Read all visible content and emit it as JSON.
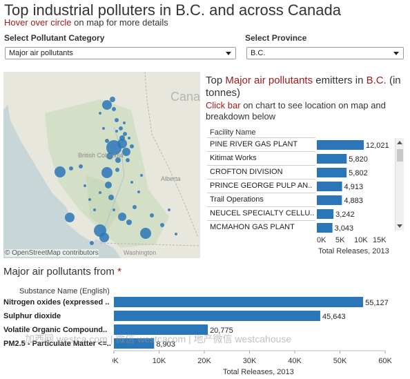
{
  "header": {
    "title": "Top industrial polluters in B.C. and across Canada",
    "subtitle_hl": "Hover over circle",
    "subtitle_rest": " on map for more details"
  },
  "filters": {
    "pollutant_label": "Select Pollutant Category",
    "pollutant_value": "Major air pollutants",
    "province_label": "Select Province",
    "province_value": "B.C."
  },
  "map": {
    "credit": "© OpenStreetMap contributors",
    "labels": [
      "Cana",
      "British Columbia",
      "Alberta",
      "Washington"
    ],
    "marker_color": "#2a76b8"
  },
  "facility_chart": {
    "head_prefix": "Top ",
    "head_hl": "Major air pollutants",
    "head_mid": " emitters in ",
    "head_province": "B.C.",
    "head_suffix": " (in tonnes)",
    "sub_hl": "Click bar",
    "sub_rest": " on chart to see location on map and breakdown below",
    "column_header": "Facility Name",
    "xlabel": "Total Releases, 2013"
  },
  "substance_chart": {
    "title_prefix": "Major air pollutants from ",
    "title_star": "*",
    "column_header": "Substance Name (English)",
    "xlabel": "Total Releases, 2013"
  },
  "watermark": "加西网 westca.com | 微信 westcacom | 地产微信 westcahouse",
  "chart_data": [
    {
      "type": "bar",
      "orientation": "horizontal",
      "categories": [
        "PINE RIVER GAS PLANT",
        "Kitimat Works",
        "CROFTON DIVISION",
        "PRINCE GEORGE PULP AN..",
        "Trail Operations",
        "NEUCEL SPECIALTY CELLU..",
        "MCMAHON GAS PLANT"
      ],
      "values": [
        12021,
        5820,
        5802,
        4913,
        4883,
        3242,
        3043
      ],
      "value_labels": [
        "12,021",
        "5,820",
        "5,802",
        "4,913",
        "4,883",
        "3,242",
        "3,043"
      ],
      "xlabel": "Total Releases, 2013",
      "xticks": [
        "0K",
        "5K",
        "10K",
        "15K"
      ],
      "xlim": [
        0,
        17000
      ],
      "color": "#2a76b8"
    },
    {
      "type": "bar",
      "orientation": "horizontal",
      "categories": [
        "Nitrogen oxides (expressed ..",
        "Sulphur dioxide",
        "Volatile Organic Compound..",
        "PM2.5 - Particulate Matter <=.."
      ],
      "values": [
        55127,
        45643,
        20775,
        8903
      ],
      "value_labels": [
        "55,127",
        "45,643",
        "20,775",
        "8,903"
      ],
      "xlabel": "Total Releases, 2013",
      "xticks": [
        "0K",
        "10K",
        "20K",
        "30K",
        "40K",
        "50K",
        "60K"
      ],
      "xlim": [
        0,
        60000
      ],
      "color": "#2a76b8"
    }
  ]
}
